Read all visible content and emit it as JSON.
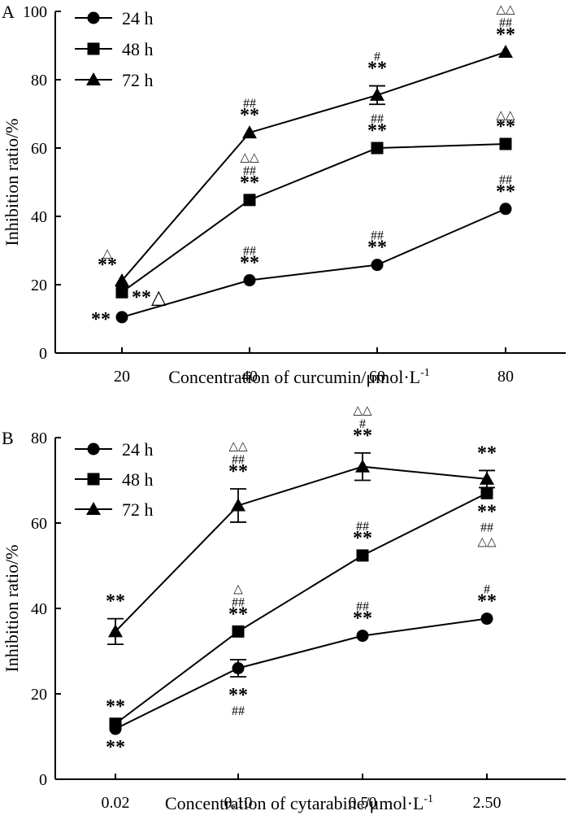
{
  "chart_data": [
    {
      "panel": "A",
      "type": "line",
      "xlabel": "Concentration of curcumin/μmol·L",
      "xlabel_sup": "-1",
      "ylabel": "Inhibition ratio/%",
      "categories": [
        "20",
        "40",
        "60",
        "80"
      ],
      "ylim": [
        0,
        100
      ],
      "yticks": [
        "0",
        "20",
        "40",
        "60",
        "80",
        "100"
      ],
      "legend_position": "top-left",
      "series": [
        {
          "name": "24 h",
          "marker": "circle",
          "values": [
            10.5,
            21.3,
            25.8,
            42.2
          ],
          "errors": [
            0,
            0,
            0,
            0
          ],
          "annotations": [
            {
              "i": 0,
              "pos": "left",
              "lines": [
                {
                  "t": "**",
                  "k": "stars"
                }
              ]
            },
            {
              "i": 1,
              "pos": "above",
              "lines": [
                {
                  "t": "##",
                  "k": "hash"
                },
                {
                  "t": "**",
                  "k": "stars"
                }
              ]
            },
            {
              "i": 2,
              "pos": "above",
              "lines": [
                {
                  "t": "##",
                  "k": "hash"
                },
                {
                  "t": "**",
                  "k": "stars"
                }
              ]
            },
            {
              "i": 3,
              "pos": "above",
              "lines": [
                {
                  "t": "##",
                  "k": "hash"
                },
                {
                  "t": "**",
                  "k": "stars"
                }
              ]
            }
          ]
        },
        {
          "name": "48 h",
          "marker": "square",
          "values": [
            17.8,
            44.8,
            60.0,
            61.2
          ],
          "errors": [
            0,
            0,
            0,
            0
          ],
          "annotations": [
            {
              "i": 0,
              "pos": "right",
              "lines": [
                {
                  "t": "**△",
                  "k": "mixed"
                }
              ]
            },
            {
              "i": 1,
              "pos": "above",
              "lines": [
                {
                  "t": "△△",
                  "k": "tri"
                },
                {
                  "t": "##",
                  "k": "hash"
                },
                {
                  "t": "**",
                  "k": "stars"
                }
              ]
            },
            {
              "i": 2,
              "pos": "above",
              "lines": [
                {
                  "t": "##",
                  "k": "hash"
                },
                {
                  "t": "**",
                  "k": "stars"
                }
              ]
            },
            {
              "i": 3,
              "pos": "above",
              "lines": [
                {
                  "t": "△△",
                  "k": "tri"
                },
                {
                  "t": "**",
                  "k": "stars"
                }
              ]
            }
          ]
        },
        {
          "name": "72 h",
          "marker": "triangle",
          "values": [
            21.2,
            64.5,
            75.5,
            88.1
          ],
          "errors": [
            0,
            0,
            2.7,
            0
          ],
          "annotations": [
            {
              "i": 0,
              "pos": "left-above",
              "lines": [
                {
                  "t": "△",
                  "k": "tri"
                },
                {
                  "t": "**",
                  "k": "stars"
                }
              ]
            },
            {
              "i": 1,
              "pos": "above",
              "lines": [
                {
                  "t": "##",
                  "k": "hash"
                },
                {
                  "t": "**",
                  "k": "stars"
                }
              ]
            },
            {
              "i": 2,
              "pos": "above",
              "lines": [
                {
                  "t": "#",
                  "k": "hash"
                },
                {
                  "t": "**",
                  "k": "stars"
                }
              ]
            },
            {
              "i": 3,
              "pos": "above",
              "lines": [
                {
                  "t": "△△",
                  "k": "tri"
                },
                {
                  "t": "##",
                  "k": "hash"
                },
                {
                  "t": "**",
                  "k": "stars"
                }
              ]
            }
          ]
        }
      ]
    },
    {
      "panel": "B",
      "type": "line",
      "xlabel": "Concentration of cytarabine/μmol·L",
      "xlabel_sup": "-1",
      "ylabel": "Inhibition ratio/%",
      "categories": [
        "0.02",
        "0.10",
        "0.50",
        "2.50"
      ],
      "ylim": [
        0,
        80
      ],
      "yticks": [
        "0",
        "20",
        "40",
        "60",
        "80"
      ],
      "legend_position": "top-left",
      "series": [
        {
          "name": "24 h",
          "marker": "circle",
          "values": [
            11.8,
            26.0,
            33.6,
            37.6
          ],
          "errors": [
            0,
            2.0,
            0,
            0
          ],
          "annotations": [
            {
              "i": 0,
              "pos": "below",
              "lines": [
                {
                  "t": "**",
                  "k": "stars"
                }
              ]
            },
            {
              "i": 1,
              "pos": "below",
              "lines": [
                {
                  "t": "**",
                  "k": "stars"
                },
                {
                  "t": "##",
                  "k": "hash"
                }
              ]
            },
            {
              "i": 2,
              "pos": "above",
              "lines": [
                {
                  "t": "##",
                  "k": "hash"
                },
                {
                  "t": "**",
                  "k": "stars"
                }
              ]
            },
            {
              "i": 3,
              "pos": "above",
              "lines": [
                {
                  "t": "#",
                  "k": "hash"
                },
                {
                  "t": "**",
                  "k": "stars"
                }
              ]
            }
          ]
        },
        {
          "name": "48 h",
          "marker": "square",
          "values": [
            13.0,
            34.6,
            52.4,
            67.0
          ],
          "errors": [
            0,
            0,
            0,
            0
          ],
          "annotations": [
            {
              "i": 0,
              "pos": "above",
              "lines": [
                {
                  "t": "**",
                  "k": "stars"
                }
              ]
            },
            {
              "i": 1,
              "pos": "above",
              "lines": [
                {
                  "t": "△",
                  "k": "tri"
                },
                {
                  "t": "##",
                  "k": "hash"
                },
                {
                  "t": "**",
                  "k": "stars"
                }
              ]
            },
            {
              "i": 2,
              "pos": "above",
              "lines": [
                {
                  "t": "##",
                  "k": "hash"
                },
                {
                  "t": "**",
                  "k": "stars"
                }
              ]
            },
            {
              "i": 3,
              "pos": "below",
              "lines": [
                {
                  "t": "**",
                  "k": "stars"
                },
                {
                  "t": "##",
                  "k": "hash"
                },
                {
                  "t": "△△",
                  "k": "tri"
                }
              ]
            }
          ]
        },
        {
          "name": "72 h",
          "marker": "triangle",
          "values": [
            34.6,
            64.1,
            73.2,
            70.3
          ],
          "errors": [
            3.0,
            3.9,
            3.2,
            2.0
          ],
          "annotations": [
            {
              "i": 0,
              "pos": "above",
              "lines": [
                {
                  "t": "**",
                  "k": "stars"
                }
              ]
            },
            {
              "i": 1,
              "pos": "above",
              "lines": [
                {
                  "t": "△△",
                  "k": "tri"
                },
                {
                  "t": "##",
                  "k": "hash"
                },
                {
                  "t": "**",
                  "k": "stars"
                }
              ]
            },
            {
              "i": 2,
              "pos": "above",
              "lines": [
                {
                  "t": "△△",
                  "k": "tri"
                },
                {
                  "t": "#",
                  "k": "hash"
                },
                {
                  "t": "**",
                  "k": "stars"
                }
              ]
            },
            {
              "i": 3,
              "pos": "above",
              "lines": [
                {
                  "t": "**",
                  "k": "stars"
                }
              ]
            }
          ]
        }
      ]
    }
  ]
}
